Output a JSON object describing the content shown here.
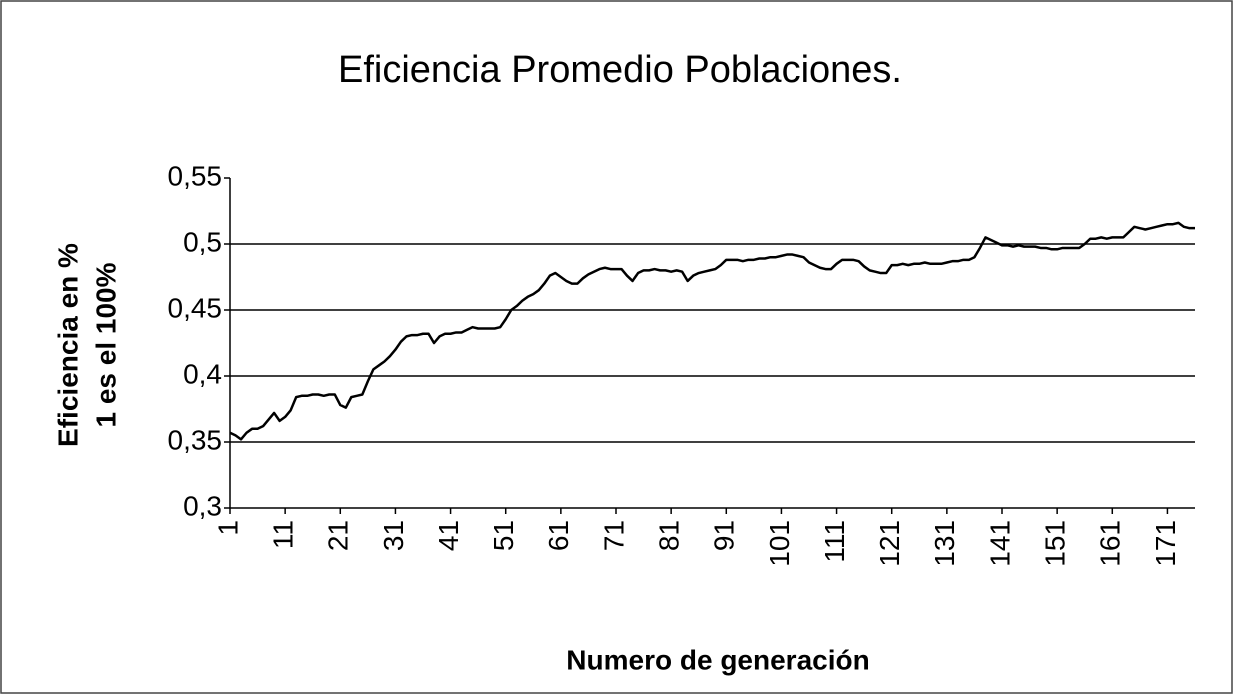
{
  "chart_data": {
    "type": "line",
    "title": "Eficiencia Promedio Poblaciones.",
    "xlabel": "Numero de generación",
    "ylabel": [
      "Eficiencia en %",
      "1 es el 100%"
    ],
    "color": "#000000",
    "grid": true,
    "xlim": [
      1,
      176
    ],
    "xticks": [
      1,
      11,
      21,
      31,
      41,
      51,
      61,
      71,
      81,
      91,
      101,
      111,
      121,
      131,
      141,
      151,
      161,
      171
    ],
    "ylim": [
      0.3,
      0.55
    ],
    "yticks": [
      {
        "value": 0.3,
        "label": "0,3"
      },
      {
        "value": 0.35,
        "label": "0,35"
      },
      {
        "value": 0.4,
        "label": "0,4"
      },
      {
        "value": 0.45,
        "label": "0,45"
      },
      {
        "value": 0.5,
        "label": "0,5"
      },
      {
        "value": 0.55,
        "label": "0,55"
      }
    ],
    "x": [
      1,
      2,
      3,
      4,
      5,
      6,
      7,
      8,
      9,
      10,
      11,
      12,
      13,
      14,
      15,
      16,
      17,
      18,
      19,
      20,
      21,
      22,
      23,
      24,
      25,
      26,
      27,
      28,
      29,
      30,
      31,
      32,
      33,
      34,
      35,
      36,
      37,
      38,
      39,
      40,
      41,
      42,
      43,
      44,
      45,
      46,
      47,
      48,
      49,
      50,
      51,
      52,
      53,
      54,
      55,
      56,
      57,
      58,
      59,
      60,
      61,
      62,
      63,
      64,
      65,
      66,
      67,
      68,
      69,
      70,
      71,
      72,
      73,
      74,
      75,
      76,
      77,
      78,
      79,
      80,
      81,
      82,
      83,
      84,
      85,
      86,
      87,
      88,
      89,
      90,
      91,
      92,
      93,
      94,
      95,
      96,
      97,
      98,
      99,
      100,
      101,
      102,
      103,
      104,
      105,
      106,
      107,
      108,
      109,
      110,
      111,
      112,
      113,
      114,
      115,
      116,
      117,
      118,
      119,
      120,
      121,
      122,
      123,
      124,
      125,
      126,
      127,
      128,
      129,
      130,
      131,
      132,
      133,
      134,
      135,
      136,
      137,
      138,
      139,
      140,
      141,
      142,
      143,
      144,
      145,
      146,
      147,
      148,
      149,
      150,
      151,
      152,
      153,
      154,
      155,
      156,
      157,
      158,
      159,
      160,
      161,
      162,
      163,
      164,
      165,
      166,
      167,
      168,
      169,
      170,
      171,
      172,
      173,
      174,
      175,
      176
    ],
    "values": [
      0.357,
      0.355,
      0.352,
      0.357,
      0.36,
      0.36,
      0.362,
      0.367,
      0.372,
      0.366,
      0.369,
      0.374,
      0.384,
      0.385,
      0.385,
      0.386,
      0.386,
      0.385,
      0.386,
      0.386,
      0.378,
      0.376,
      0.384,
      0.385,
      0.386,
      0.396,
      0.405,
      0.408,
      0.411,
      0.415,
      0.42,
      0.426,
      0.43,
      0.431,
      0.431,
      0.432,
      0.432,
      0.425,
      0.43,
      0.432,
      0.432,
      0.433,
      0.433,
      0.435,
      0.437,
      0.436,
      0.436,
      0.436,
      0.436,
      0.437,
      0.443,
      0.45,
      0.453,
      0.457,
      0.46,
      0.462,
      0.465,
      0.47,
      0.476,
      0.478,
      0.475,
      0.472,
      0.47,
      0.47,
      0.474,
      0.477,
      0.479,
      0.481,
      0.482,
      0.481,
      0.481,
      0.481,
      0.476,
      0.472,
      0.478,
      0.48,
      0.48,
      0.481,
      0.48,
      0.48,
      0.479,
      0.48,
      0.479,
      0.472,
      0.476,
      0.478,
      0.479,
      0.48,
      0.481,
      0.484,
      0.488,
      0.488,
      0.488,
      0.487,
      0.488,
      0.488,
      0.489,
      0.489,
      0.49,
      0.49,
      0.491,
      0.492,
      0.492,
      0.491,
      0.49,
      0.486,
      0.484,
      0.482,
      0.481,
      0.481,
      0.485,
      0.488,
      0.488,
      0.488,
      0.487,
      0.483,
      0.48,
      0.479,
      0.478,
      0.478,
      0.484,
      0.484,
      0.485,
      0.484,
      0.485,
      0.485,
      0.486,
      0.485,
      0.485,
      0.485,
      0.486,
      0.487,
      0.487,
      0.488,
      0.488,
      0.49,
      0.497,
      0.505,
      0.503,
      0.501,
      0.499,
      0.499,
      0.498,
      0.499,
      0.498,
      0.498,
      0.498,
      0.497,
      0.497,
      0.496,
      0.496,
      0.497,
      0.497,
      0.497,
      0.497,
      0.5,
      0.504,
      0.504,
      0.505,
      0.504,
      0.505,
      0.505,
      0.505,
      0.509,
      0.513,
      0.512,
      0.511,
      0.512,
      0.513,
      0.514,
      0.515,
      0.515,
      0.516,
      0.513,
      0.512,
      0.512
    ]
  }
}
